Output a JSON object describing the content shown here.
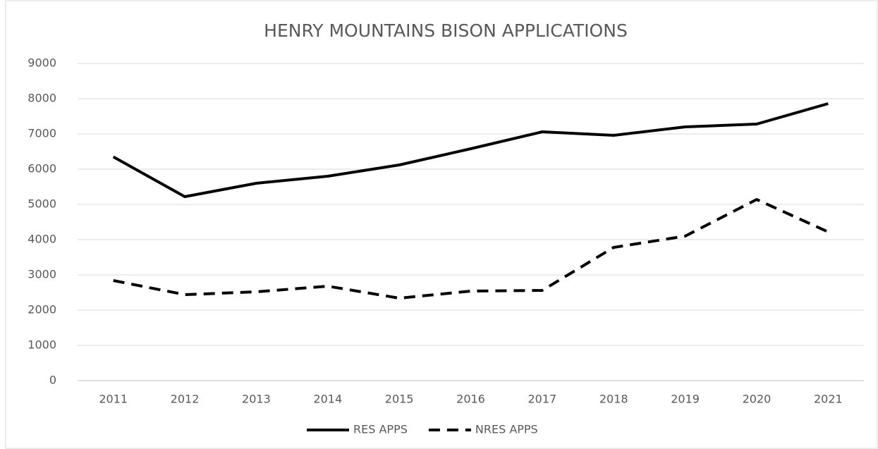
{
  "chart_data": {
    "type": "line",
    "title": "HENRY MOUNTAINS BISON APPLICATIONS",
    "categories": [
      "2011",
      "2012",
      "2013",
      "2014",
      "2015",
      "2016",
      "2017",
      "2018",
      "2019",
      "2020",
      "2021"
    ],
    "series": [
      {
        "name": "RES APPS",
        "color": "#000000",
        "line_style": "solid",
        "values": [
          6350,
          5220,
          5600,
          5800,
          6120,
          6580,
          7060,
          6960,
          7200,
          7280,
          7860
        ]
      },
      {
        "name": "NRES APPS",
        "color": "#000000",
        "line_style": "dashed",
        "values": [
          2840,
          2440,
          2520,
          2680,
          2340,
          2540,
          2560,
          3780,
          4100,
          5140,
          4220
        ]
      }
    ],
    "ylim": [
      0,
      9000
    ],
    "yticks": [
      0,
      1000,
      2000,
      3000,
      4000,
      5000,
      6000,
      7000,
      8000,
      9000
    ],
    "grid": true,
    "legend": "bottom"
  }
}
